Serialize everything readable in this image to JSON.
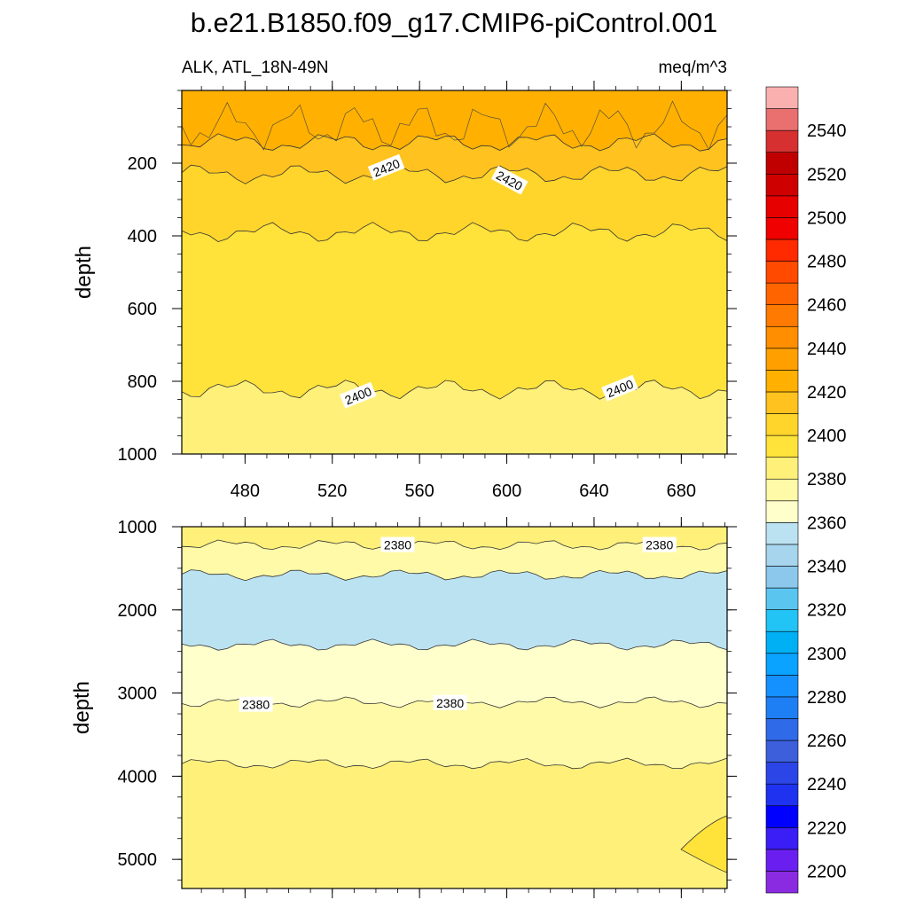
{
  "title": "b.e21.B1850.f09_g17.CMIP6-piControl.001",
  "chart_data": {
    "type": "contour",
    "variable": "ALK",
    "region": "ATL_18N-49N",
    "units": "meq/m^3",
    "colorbar": {
      "levels": [
        2190,
        2200,
        2210,
        2220,
        2230,
        2240,
        2250,
        2260,
        2270,
        2280,
        2290,
        2300,
        2310,
        2320,
        2330,
        2340,
        2350,
        2360,
        2370,
        2380,
        2390,
        2400,
        2410,
        2420,
        2430,
        2440,
        2450,
        2460,
        2470,
        2480,
        2490,
        2500,
        2510,
        2520,
        2530,
        2540,
        2550
      ],
      "colors": [
        "#8A2BE2",
        "#6A1FF0",
        "#3A1EF5",
        "#0000FF",
        "#1E32F0",
        "#2B45E6",
        "#3D5FDC",
        "#2F6AE8",
        "#1E7FF5",
        "#1590FF",
        "#0AA3FF",
        "#00B0F5",
        "#22C3F5",
        "#5AC6F0",
        "#8CC8EC",
        "#A8D5EE",
        "#BBE2F1",
        "#FFFFCC",
        "#FFFAA8",
        "#FFF07A",
        "#FFE23A",
        "#FFD52C",
        "#FFC21E",
        "#FFB000",
        "#FFA000",
        "#FF8E00",
        "#FF7A00",
        "#FF6400",
        "#FF4A00",
        "#FF2A00",
        "#F00000",
        "#E60000",
        "#CF0000",
        "#C00000",
        "#D63030",
        "#EA7070",
        "#FBB0B0"
      ],
      "tick_labels": [
        "2200",
        "2220",
        "2240",
        "2260",
        "2280",
        "2300",
        "2320",
        "2340",
        "2360",
        "2380",
        "2400",
        "2420",
        "2440",
        "2460",
        "2480",
        "2500",
        "2520",
        "2540"
      ]
    },
    "panels": [
      {
        "name": "upper",
        "ylabel": "depth",
        "y_range": [
          0,
          1000
        ],
        "y_ticks": [
          "200",
          "400",
          "600",
          "800",
          "1000"
        ],
        "y_tick_values": [
          200,
          400,
          600,
          800,
          1000
        ],
        "x_range": [
          451,
          701
        ],
        "x_ticks": [
          "480",
          "520",
          "560",
          "600",
          "640",
          "680"
        ],
        "x_tick_values": [
          480,
          520,
          560,
          600,
          640,
          680
        ],
        "contour_labels": [
          {
            "text": "2420",
            "x": 545,
            "y": 215
          },
          {
            "text": "2420",
            "x": 601,
            "y": 250
          },
          {
            "text": "2400",
            "x": 532,
            "y": 842
          },
          {
            "text": "2400",
            "x": 652,
            "y": 822
          }
        ],
        "bands": [
          {
            "from": 0,
            "to": 143,
            "color": "#FFB000"
          },
          {
            "from": 143,
            "to": 230,
            "color": "#FFC21E"
          },
          {
            "from": 230,
            "to": 390,
            "color": "#FFD52C"
          },
          {
            "from": 390,
            "to": 822,
            "color": "#FFE23A"
          },
          {
            "from": 822,
            "to": 1000,
            "color": "#FFF07A"
          }
        ]
      },
      {
        "name": "lower",
        "ylabel": "depth",
        "y_range": [
          1000,
          5350
        ],
        "y_ticks": [
          "1000",
          "2000",
          "3000",
          "4000",
          "5000"
        ],
        "y_tick_values": [
          1000,
          2000,
          3000,
          4000,
          5000
        ],
        "x_range": [
          451,
          701
        ],
        "x_tick_values": [
          480,
          520,
          560,
          600,
          640,
          680
        ],
        "contour_labels": [
          {
            "text": "2380",
            "x": 550,
            "y": 1230
          },
          {
            "text": "2380",
            "x": 670,
            "y": 1230
          },
          {
            "text": "2380",
            "x": 485,
            "y": 3150
          },
          {
            "text": "2380",
            "x": 574,
            "y": 3130
          }
        ],
        "bands": [
          {
            "from": 1000,
            "to": 1220,
            "color": "#FFF07A"
          },
          {
            "from": 1220,
            "to": 1580,
            "color": "#FFFAA8"
          },
          {
            "from": 1580,
            "to": 2420,
            "color": "#BBE2F1"
          },
          {
            "from": 2420,
            "to": 3110,
            "color": "#FFFFCC"
          },
          {
            "from": 3110,
            "to": 3850,
            "color": "#FFFAA8"
          },
          {
            "from": 3850,
            "to": 5350,
            "color": "#FFF07A"
          }
        ]
      }
    ]
  }
}
